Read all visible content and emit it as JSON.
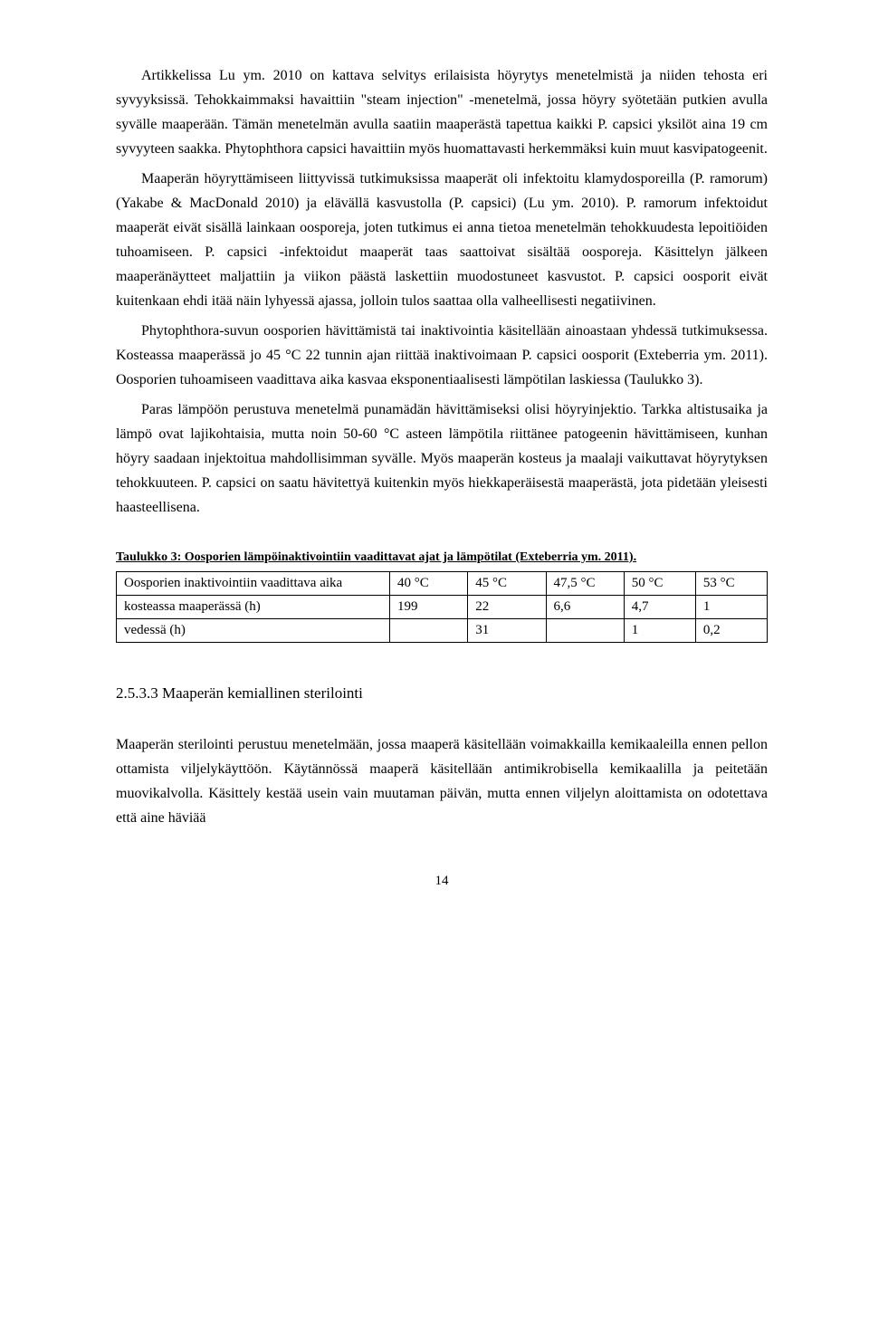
{
  "paragraphs": {
    "p1": "Artikkelissa Lu ym. 2010 on kattava selvitys erilaisista höyrytys menetelmistä ja niiden tehosta eri syvyyksissä. Tehokkaimmaksi havaittiin \"steam injection\" -menetelmä, jossa höyry syötetään putkien avulla syvälle maaperään. Tämän menetelmän avulla saatiin maaperästä tapettua kaikki P. capsici yksilöt aina 19 cm syvyyteen saakka. Phytophthora capsici havaittiin myös huomattavasti herkemmäksi kuin muut kasvipatogeenit.",
    "p2": "Maaperän höyryttämiseen liittyvissä tutkimuksissa maaperät oli infektoitu klamydosporeilla (P. ramorum) (Yakabe & MacDonald 2010) ja elävällä kasvustolla (P. capsici) (Lu ym. 2010). P. ramorum infektoidut maaperät eivät sisällä lainkaan oosporeja, joten tutkimus ei anna tietoa menetelmän tehokkuudesta lepoitiöiden tuhoamiseen. P. capsici -infektoidut maaperät taas saattoivat sisältää oosporeja. Käsittelyn jälkeen maaperänäytteet maljattiin ja viikon päästä laskettiin muodostuneet kasvustot. P. capsici oosporit eivät kuitenkaan ehdi itää näin lyhyessä ajassa, jolloin tulos saattaa olla valheellisesti negatiivinen.",
    "p3": "Phytophthora-suvun oosporien hävittämistä tai inaktivointia käsitellään ainoastaan yhdessä tutkimuksessa. Kosteassa maaperässä jo 45 °C 22 tunnin ajan riittää inaktivoimaan P. capsici oosporit (Exteberria ym. 2011). Oosporien tuhoamiseen vaadittava aika kasvaa eksponentiaalisesti lämpötilan laskiessa (Taulukko 3).",
    "p4": "Paras lämpöön perustuva menetelmä punamädän hävittämiseksi olisi höyryinjektio. Tarkka altistusaika ja lämpö ovat lajikohtaisia, mutta noin 50-60 °C asteen lämpötila riittänee patogeenin hävittämiseen, kunhan höyry saadaan injektoitua mahdollisimman syvälle. Myös maaperän kosteus ja maalaji vaikuttavat höyrytyksen tehokkuuteen. P. capsici on saatu hävitettyä kuitenkin myös hiekkaperäisestä maaperästä, jota pidetään yleisesti haasteellisena.",
    "p5": "Maaperän sterilointi perustuu menetelmään, jossa maaperä käsitellään voimakkailla kemikaaleilla ennen pellon ottamista viljelykäyttöön. Käytännössä maaperä käsitellään antimikrobisella kemikaalilla ja peitetään muovikalvolla. Käsittely kestää usein vain muutaman päivän, mutta ennen viljelyn aloittamista on odotettava että aine häviää"
  },
  "table": {
    "caption": "Taulukko 3: Oosporien lämpöinaktivointiin vaadittavat ajat ja lämpötilat (Exteberria ym. 2011).",
    "header": [
      "Oosporien inaktivointiin vaadittava aika",
      "40 °C",
      "45 °C",
      "47,5 °C",
      "50 °C",
      "53 °C"
    ],
    "rows": [
      [
        "kosteassa maaperässä (h)",
        "199",
        "22",
        "6,6",
        "4,7",
        "1"
      ],
      [
        "vedessä (h)",
        "",
        "31",
        "",
        "1",
        "0,2"
      ]
    ],
    "col_widths": [
      "42%",
      "12%",
      "12%",
      "12%",
      "11%",
      "11%"
    ]
  },
  "section_heading": "2.5.3.3 Maaperän kemiallinen sterilointi",
  "page_number": "14"
}
